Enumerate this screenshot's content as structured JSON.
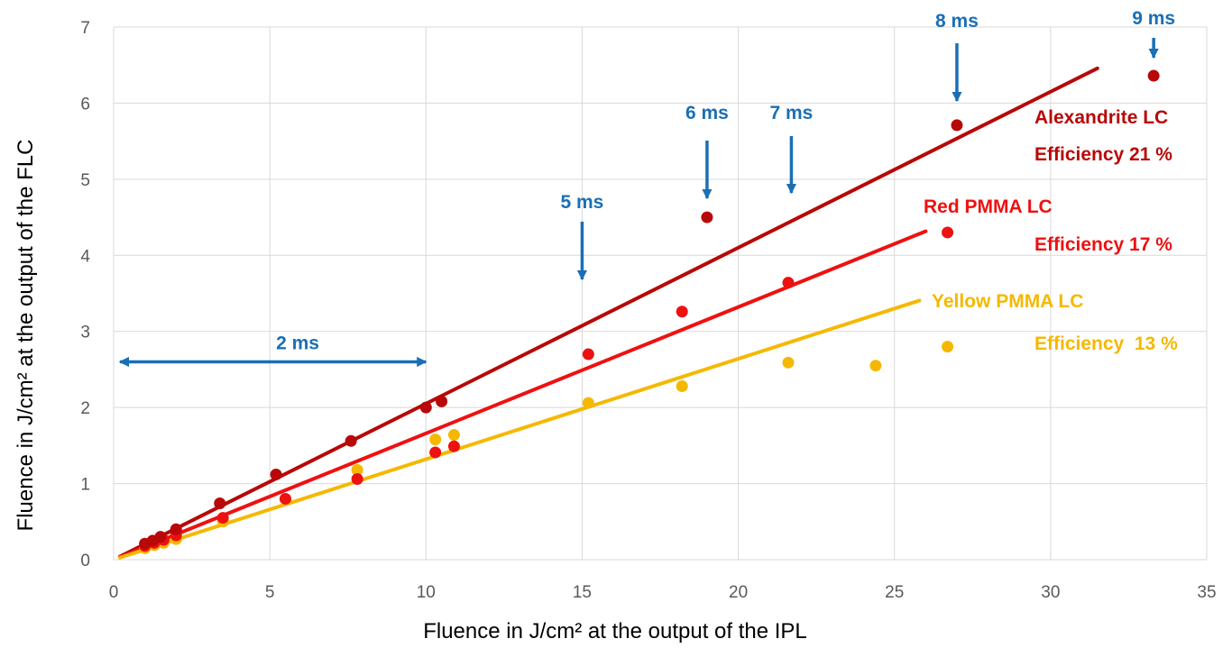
{
  "chart_data": {
    "type": "scatter",
    "xlabel": "Fluence in J/cm² at the output of the IPL",
    "ylabel": "Fluence in J/cm² at the output of the FLC",
    "xlim": [
      0,
      35
    ],
    "ylim": [
      0,
      7
    ],
    "xticks": [
      0,
      5,
      10,
      15,
      20,
      25,
      30,
      35
    ],
    "yticks": [
      0,
      1,
      2,
      3,
      4,
      5,
      6,
      7
    ],
    "grid": true,
    "series": [
      {
        "name": "Alexandrite LC",
        "color": "#b80808",
        "efficiency_label": "Efficiency 21 %",
        "trendline": {
          "slope": 0.205,
          "x": [
            0.2,
            31.5
          ]
        },
        "points": [
          [
            1.0,
            0.21
          ],
          [
            1.25,
            0.25
          ],
          [
            1.5,
            0.3
          ],
          [
            2.0,
            0.4
          ],
          [
            3.4,
            0.74
          ],
          [
            5.2,
            1.12
          ],
          [
            7.6,
            1.56
          ],
          [
            10.0,
            2.0
          ],
          [
            10.5,
            2.08
          ],
          [
            19.0,
            4.5
          ],
          [
            27.0,
            5.71
          ],
          [
            33.3,
            6.36
          ]
        ]
      },
      {
        "name": "Red PMMA LC",
        "color": "#ee1111",
        "efficiency_label": "Efficiency 17 %",
        "trendline": {
          "slope": 0.166,
          "x": [
            0.2,
            26.0
          ]
        },
        "points": [
          [
            1.0,
            0.18
          ],
          [
            1.3,
            0.22
          ],
          [
            1.6,
            0.26
          ],
          [
            2.0,
            0.32
          ],
          [
            3.5,
            0.55
          ],
          [
            5.5,
            0.8
          ],
          [
            7.8,
            1.06
          ],
          [
            10.3,
            1.41
          ],
          [
            10.9,
            1.49
          ],
          [
            15.2,
            2.7
          ],
          [
            18.2,
            3.26
          ],
          [
            21.6,
            3.64
          ],
          [
            26.7,
            4.3
          ]
        ]
      },
      {
        "name": "Yellow PMMA LC",
        "color": "#f5b800",
        "efficiency_label": "Efficiency  13 %",
        "trendline": {
          "slope": 0.132,
          "x": [
            0.2,
            25.8
          ]
        },
        "points": [
          [
            1.0,
            0.15
          ],
          [
            1.3,
            0.19
          ],
          [
            1.6,
            0.22
          ],
          [
            2.0,
            0.27
          ],
          [
            3.5,
            0.5
          ],
          [
            5.5,
            0.8
          ],
          [
            7.8,
            1.18
          ],
          [
            10.3,
            1.58
          ],
          [
            10.9,
            1.64
          ],
          [
            15.2,
            2.06
          ],
          [
            18.2,
            2.28
          ],
          [
            21.6,
            2.59
          ],
          [
            24.4,
            2.55
          ],
          [
            26.7,
            2.8
          ]
        ]
      }
    ],
    "annotations": {
      "color": "#1a6fb5",
      "range_2ms": {
        "label": "2 ms",
        "x": [
          0.2,
          10.0
        ],
        "y": 2.6
      },
      "arrows": [
        {
          "label": "5 ms",
          "x": 15.0
        },
        {
          "label": "6 ms",
          "x": 19.0
        },
        {
          "label": "7 ms",
          "x": 21.7
        },
        {
          "label": "8 ms",
          "x": 27.0
        },
        {
          "label": "9 ms",
          "x": 33.3
        }
      ]
    }
  }
}
